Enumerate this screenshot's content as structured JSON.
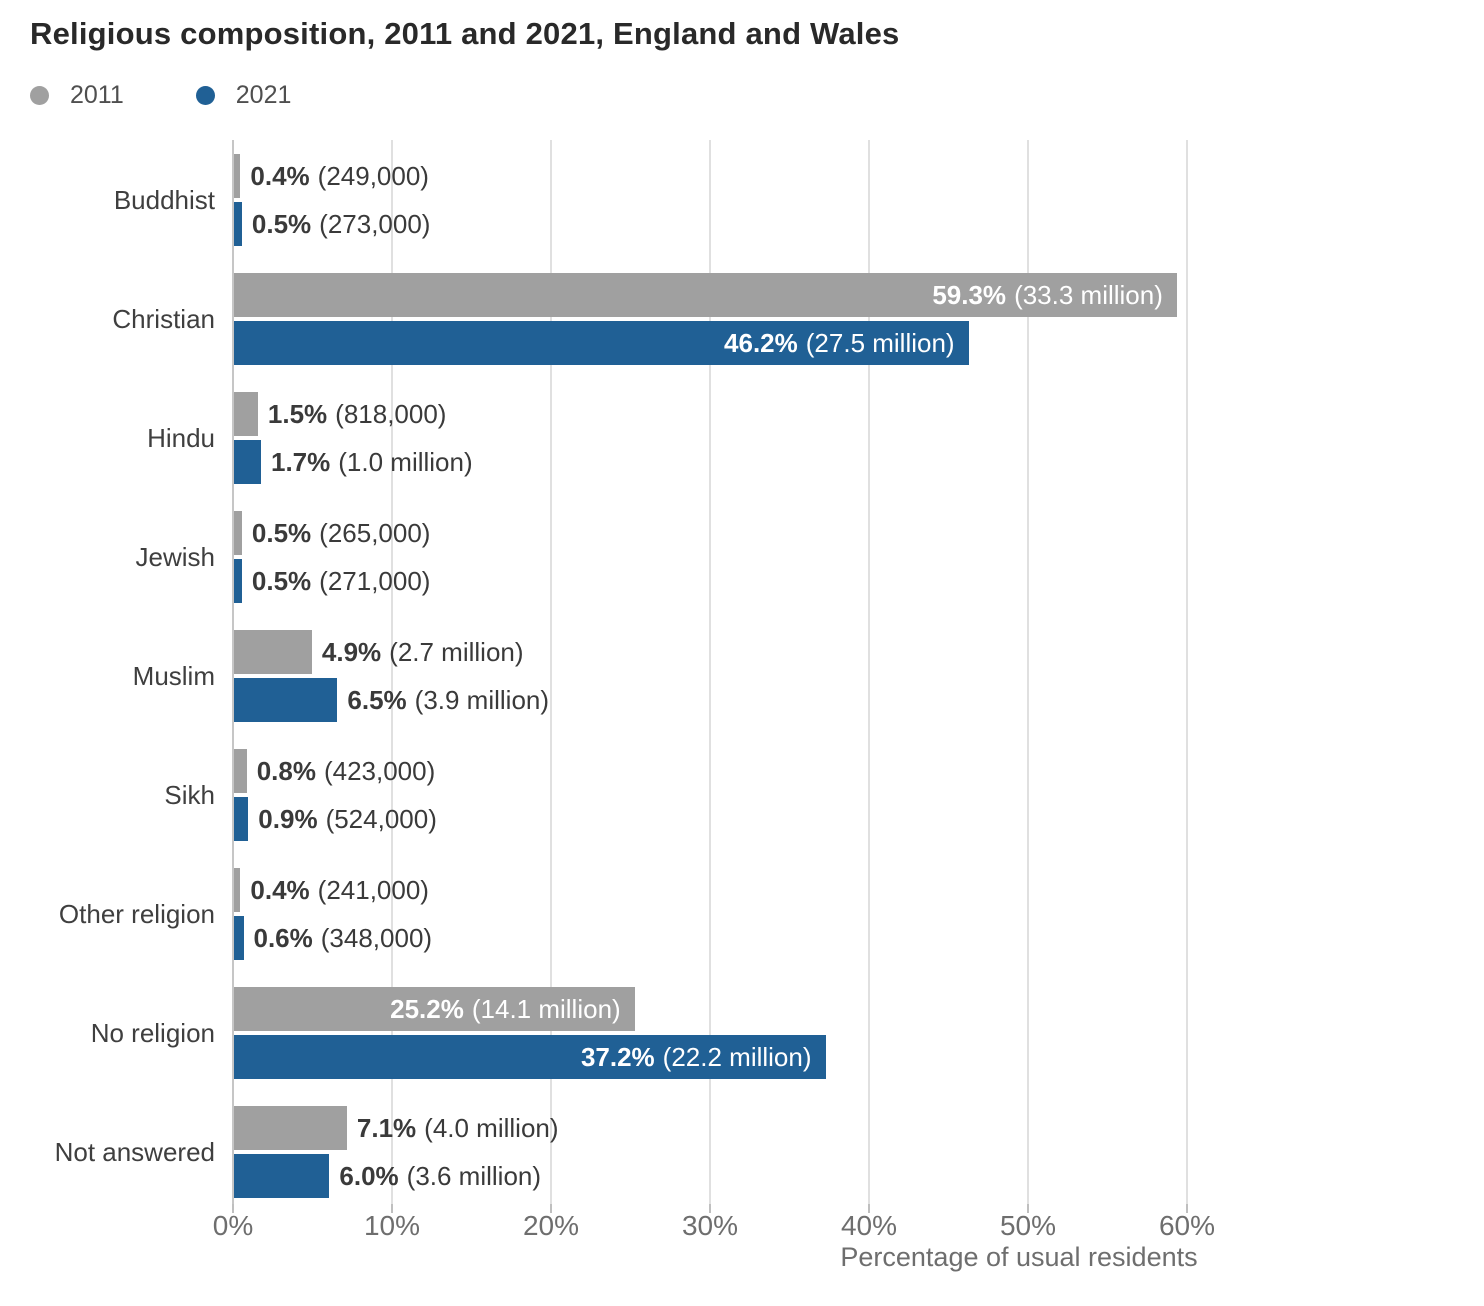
{
  "title": "Religious composition, 2011 and 2021, England and Wales",
  "legend": [
    {
      "label": "2011",
      "color": "#a0a0a0"
    },
    {
      "label": "2021",
      "color": "#206095"
    }
  ],
  "chart_data": {
    "type": "bar",
    "orientation": "horizontal",
    "title": "Religious composition, 2011 and 2021, England and Wales",
    "xlabel": "Percentage of usual residents",
    "ylabel": "",
    "xlim": [
      0,
      60
    ],
    "xticks": [
      "0%",
      "10%",
      "20%",
      "30%",
      "40%",
      "50%",
      "60%"
    ],
    "xtick_values": [
      0,
      10,
      20,
      30,
      40,
      50,
      60
    ],
    "grid": true,
    "legend_position": "top-left",
    "categories": [
      "Buddhist",
      "Christian",
      "Hindu",
      "Jewish",
      "Muslim",
      "Sikh",
      "Other religion",
      "No religion",
      "Not answered"
    ],
    "series": [
      {
        "name": "2011",
        "color": "#a0a0a0",
        "values": [
          0.4,
          59.3,
          1.5,
          0.5,
          4.9,
          0.8,
          0.4,
          25.2,
          7.1
        ],
        "labels": [
          {
            "pct": "0.4%",
            "count": "(249,000)"
          },
          {
            "pct": "59.3%",
            "count": "(33.3 million)"
          },
          {
            "pct": "1.5%",
            "count": "(818,000)"
          },
          {
            "pct": "0.5%",
            "count": "(265,000)"
          },
          {
            "pct": "4.9%",
            "count": "(2.7 million)"
          },
          {
            "pct": "0.8%",
            "count": "(423,000)"
          },
          {
            "pct": "0.4%",
            "count": "(241,000)"
          },
          {
            "pct": "25.2%",
            "count": "(14.1 million)"
          },
          {
            "pct": "7.1%",
            "count": "(4.0 million)"
          }
        ]
      },
      {
        "name": "2021",
        "color": "#206095",
        "values": [
          0.5,
          46.2,
          1.7,
          0.5,
          6.5,
          0.9,
          0.6,
          37.2,
          6.0
        ],
        "labels": [
          {
            "pct": "0.5%",
            "count": "(273,000)"
          },
          {
            "pct": "46.2%",
            "count": "(27.5 million)"
          },
          {
            "pct": "1.7%",
            "count": "(1.0 million)"
          },
          {
            "pct": "0.5%",
            "count": "(271,000)"
          },
          {
            "pct": "6.5%",
            "count": "(3.9 million)"
          },
          {
            "pct": "0.9%",
            "count": "(524,000)"
          },
          {
            "pct": "0.6%",
            "count": "(348,000)"
          },
          {
            "pct": "37.2%",
            "count": "(22.2 million)"
          },
          {
            "pct": "6.0%",
            "count": "(3.6 million)"
          }
        ]
      }
    ]
  }
}
